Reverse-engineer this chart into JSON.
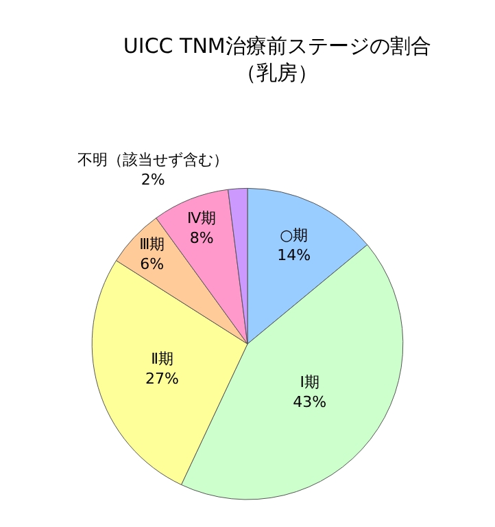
{
  "chart_data": {
    "type": "pie",
    "title": "UICC TNM治療前ステージの割合",
    "subtitle": "（乳房）",
    "categories": [
      "○期",
      "Ⅰ期",
      "Ⅱ期",
      "Ⅲ期",
      "Ⅳ期",
      "不明（該当せず含む）"
    ],
    "values": [
      14,
      43,
      27,
      6,
      8,
      2
    ],
    "value_labels": [
      "14%",
      "43%",
      "27%",
      "6%",
      "8%",
      "2%"
    ],
    "colors": [
      "#99ccff",
      "#ccffcc",
      "#ffff99",
      "#ffcc99",
      "#ff99cc",
      "#cc99ff"
    ],
    "legend": false
  }
}
